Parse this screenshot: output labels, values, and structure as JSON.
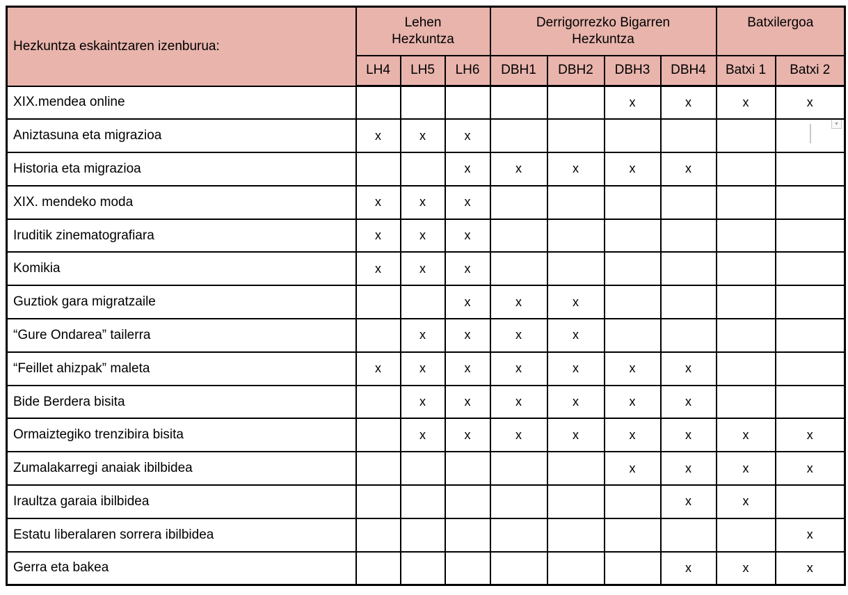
{
  "table": {
    "title_cell": "Hezkuntza eskaintzaren izenburua:",
    "colors": {
      "header_bg": "#e8b4ac",
      "border": "#000000",
      "artifact_gray": "#c9c9c9"
    },
    "groups": [
      {
        "lines": [
          "Lehen",
          "Hezkuntza"
        ],
        "span": 3
      },
      {
        "lines": [
          "Derrigorrezko Bigarren",
          "Hezkuntza"
        ],
        "span": 4
      },
      {
        "lines": [
          "Batxilergoa"
        ],
        "span": 2
      }
    ],
    "columns": [
      "LH4",
      "LH5",
      "LH6",
      "DBH1",
      "DBH2",
      "DBH3",
      "DBH4",
      "Batxi 1",
      "Batxi 2"
    ],
    "mark": "x",
    "rows": [
      {
        "label": "XIX.mendea online",
        "cells": [
          "",
          "",
          "",
          "",
          "",
          "x",
          "x",
          "x",
          "x"
        ]
      },
      {
        "label": "Aniztasuna eta migrazioa",
        "cells": [
          "x",
          "x",
          "x",
          "",
          "",
          "",
          "",
          "",
          ""
        ],
        "has_artifact": true
      },
      {
        "label": "Historia eta migrazioa",
        "cells": [
          "",
          "",
          "x",
          "x",
          "x",
          "x",
          "x",
          "",
          ""
        ]
      },
      {
        "label": "XIX. mendeko moda",
        "cells": [
          "x",
          "x",
          "x",
          "",
          "",
          "",
          "",
          "",
          ""
        ]
      },
      {
        "label": "Iruditik zinematografiara",
        "cells": [
          "x",
          "x",
          "x",
          "",
          "",
          "",
          "",
          "",
          ""
        ]
      },
      {
        "label": "Komikia",
        "cells": [
          "x",
          "x",
          "x",
          "",
          "",
          "",
          "",
          "",
          ""
        ]
      },
      {
        "label": "Guztiok gara migratzaile",
        "cells": [
          "",
          "",
          "x",
          "x",
          "x",
          "",
          "",
          "",
          ""
        ]
      },
      {
        "label": "“Gure Ondarea” tailerra",
        "cells": [
          "",
          "x",
          "x",
          "x",
          "x",
          "",
          "",
          "",
          ""
        ]
      },
      {
        "label": "“Feillet ahizpak” maleta",
        "cells": [
          "x",
          "x",
          "x",
          "x",
          "x",
          "x",
          "x",
          "",
          ""
        ]
      },
      {
        "label": "Bide Berdera bisita",
        "cells": [
          "",
          "x",
          "x",
          "x",
          "x",
          "x",
          "x",
          "",
          ""
        ]
      },
      {
        "label": "Ormaiztegiko trenzibira bisita",
        "cells": [
          "",
          "x",
          "x",
          "x",
          "x",
          "x",
          "x",
          "x",
          "x"
        ]
      },
      {
        "label": "Zumalakarregi anaiak ibilbidea",
        "cells": [
          "",
          "",
          "",
          "",
          "",
          "x",
          "x",
          "x",
          "x"
        ]
      },
      {
        "label": "Iraultza garaia ibilbidea",
        "cells": [
          "",
          "",
          "",
          "",
          "",
          "",
          "x",
          "x",
          ""
        ]
      },
      {
        "label": "Estatu liberalaren sorrera ibilbidea",
        "cells": [
          "",
          "",
          "",
          "",
          "",
          "",
          "",
          "",
          "x"
        ]
      },
      {
        "label": "Gerra eta bakea",
        "cells": [
          "",
          "",
          "",
          "",
          "",
          "",
          "x",
          "x",
          "x"
        ]
      }
    ],
    "artifact": {
      "dropdown_arrow": "▼",
      "artifact_col_index": 8
    }
  }
}
